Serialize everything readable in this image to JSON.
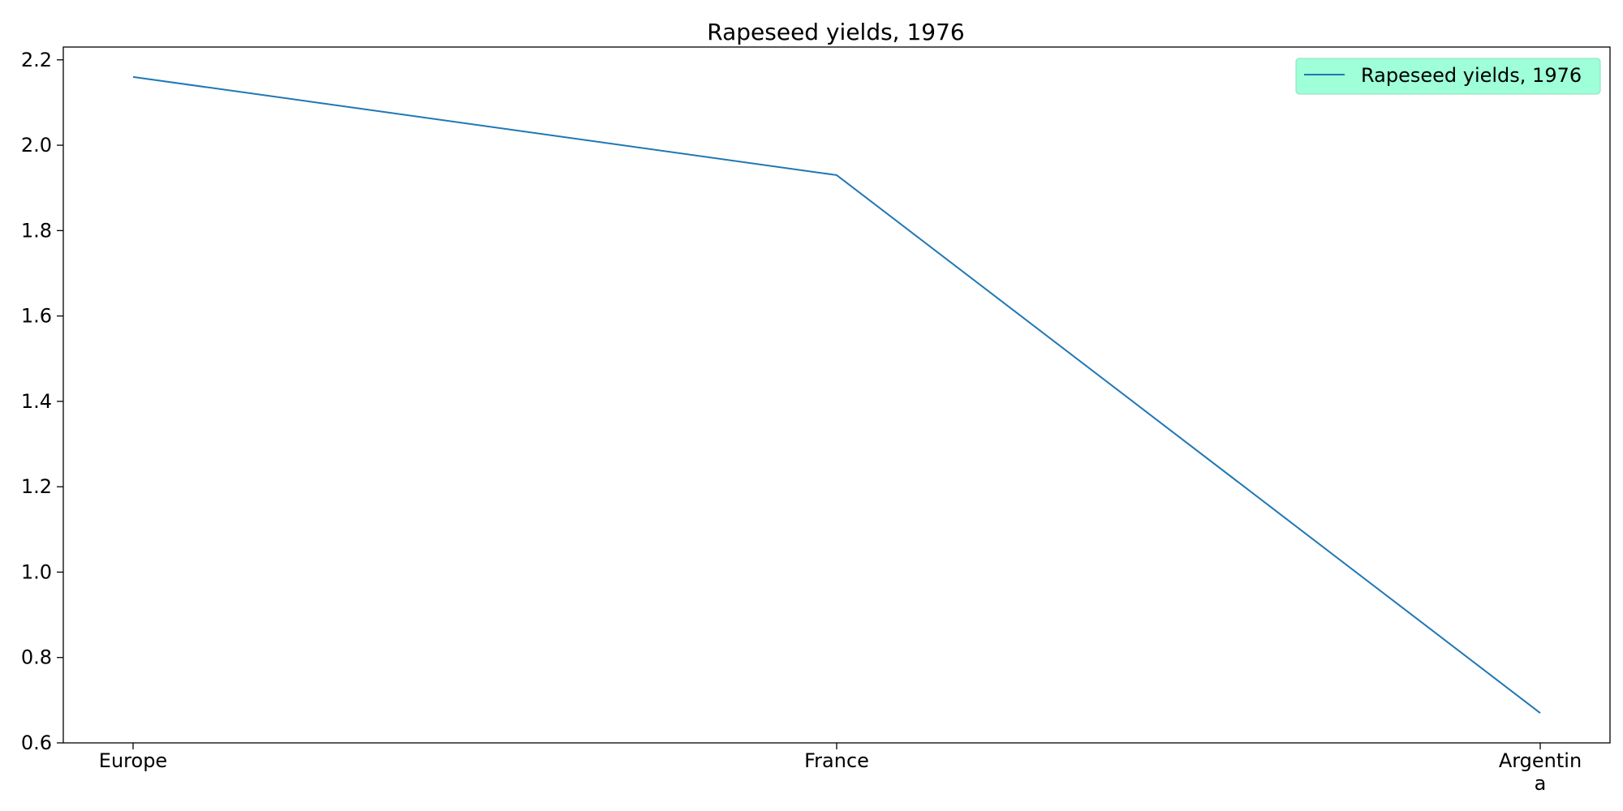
{
  "chart_data": {
    "type": "line",
    "title": "Rapeseed yields, 1976",
    "xlabel": "",
    "ylabel": "",
    "categories": [
      "Europe",
      "France",
      "Argentina"
    ],
    "category_tick_lines": [
      [
        "Europe"
      ],
      [
        "France"
      ],
      [
        "Argentin",
        "a"
      ]
    ],
    "series": [
      {
        "name": "Rapeseed yields, 1976",
        "values": [
          2.16,
          1.93,
          0.67
        ],
        "color": "#1f77b4"
      }
    ],
    "ylim": [
      0.6,
      2.23
    ],
    "yticks": [
      "0.6",
      "0.8",
      "1.0",
      "1.2",
      "1.4",
      "1.6",
      "1.8",
      "2.0",
      "2.2"
    ],
    "grid": false,
    "legend": {
      "placement": "top-right",
      "background": "#9effd8",
      "border": "#8fdcc0"
    }
  }
}
